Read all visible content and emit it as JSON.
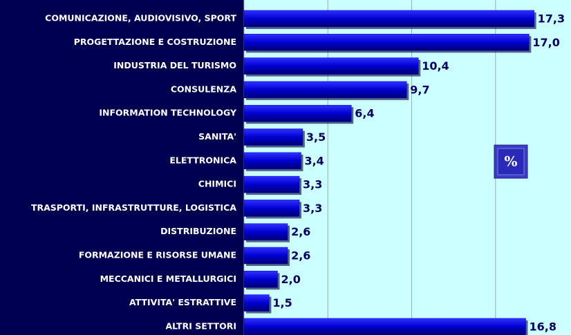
{
  "chart_data": {
    "type": "barh",
    "categories": [
      "COMUNICAZIONE, AUDIOVISIVO, SPORT",
      "PROGETTAZIONE E COSTRUZIONE",
      "INDUSTRIA DEL TURISMO",
      "CONSULENZA",
      "INFORMATION TECHNOLOGY",
      "SANITA'",
      "ELETTRONICA",
      "CHIMICI",
      "TRASPORTI, INFRASTRUTTURE, LOGISTICA",
      "DISTRIBUZIONE",
      "FORMAZIONE E RISORSE UMANE",
      "MECCANICI E METALLURGICI",
      "ATTIVITA' ESTRATTIVE",
      "ALTRI SETTORI"
    ],
    "values": [
      17.3,
      17.0,
      10.4,
      9.7,
      6.4,
      3.5,
      3.4,
      3.3,
      3.3,
      2.6,
      2.6,
      2.0,
      1.5,
      16.8
    ],
    "value_labels": [
      "17,3",
      "17,0",
      "10,4",
      "9,7",
      "6,4",
      "3,5",
      "3,4",
      "3,3",
      "3,3",
      "2,6",
      "2,6",
      "2,0",
      "1,5",
      "16,8"
    ],
    "color": "#0000e0",
    "xlim": [
      0,
      19.5
    ],
    "xticks": [
      0,
      5,
      10,
      15
    ],
    "grid": true,
    "annotation": "%"
  }
}
